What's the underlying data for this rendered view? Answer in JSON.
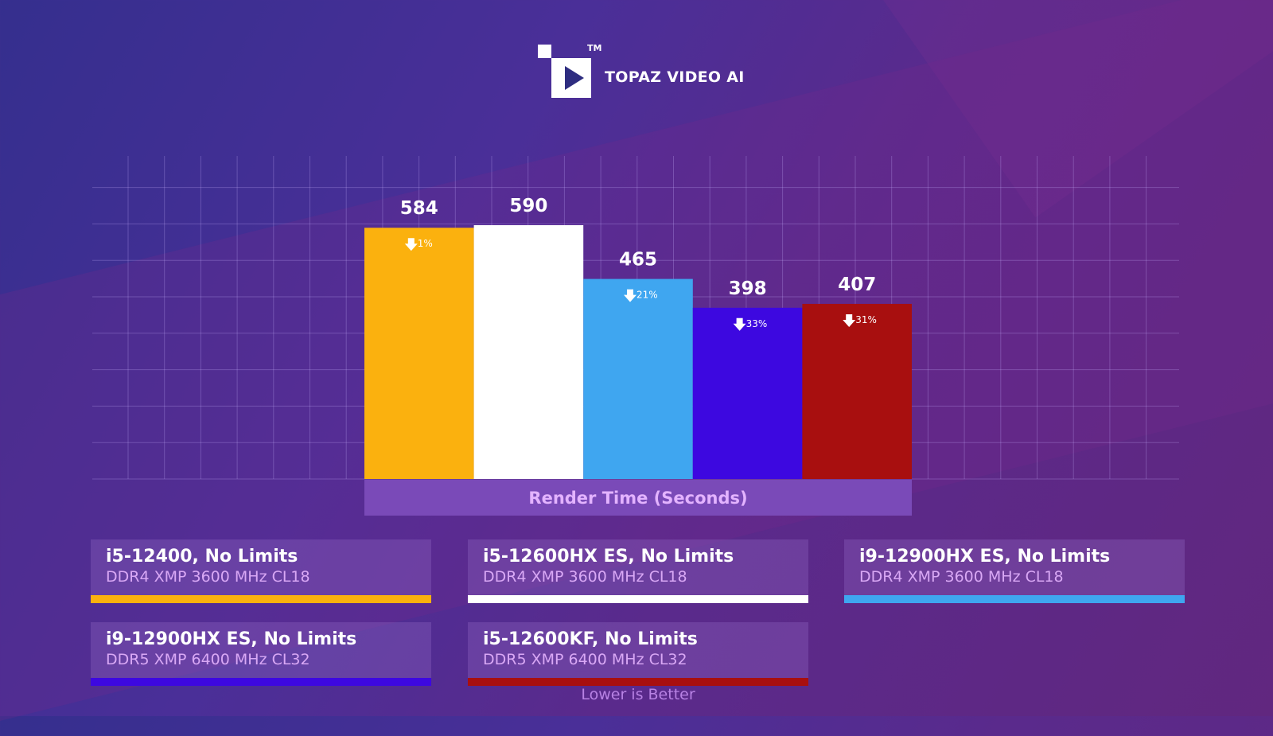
{
  "brand": {
    "name": "TOPAZ VIDEO AI",
    "trademark": "TM"
  },
  "chart_data": {
    "type": "bar",
    "categories": [
      "i5-12400, No Limits",
      "i5-12600HX ES, No Limits",
      "i9-12900HX ES, No Limits",
      "i9-12900HX ES, No Limits",
      "i5-12600KF, No Limits"
    ],
    "values": [
      584,
      590,
      465,
      398,
      407
    ],
    "value_labels": [
      "584",
      "590",
      "465",
      "398",
      "407"
    ],
    "deltas": [
      "1%",
      "",
      "21%",
      "33%",
      "31%"
    ],
    "colors": [
      "#fbb10e",
      "#ffffff",
      "#3fa6f0",
      "#3d08e0",
      "#a80f0f"
    ],
    "xlabel": "Render Time (Seconds)",
    "ylim": [
      0,
      738
    ],
    "grid": true,
    "legend": [
      {
        "name": "i5-12400, No Limits",
        "spec": "DDR4 XMP 3600 MHz CL18",
        "color": "#fbb10e"
      },
      {
        "name": "i5-12600HX ES, No Limits",
        "spec": "DDR4 XMP 3600 MHz CL18",
        "color": "#ffffff"
      },
      {
        "name": "i9-12900HX ES, No Limits",
        "spec": "DDR4 XMP 3600 MHz CL18",
        "color": "#3fa6f0"
      },
      {
        "name": "i9-12900HX ES, No Limits",
        "spec": "DDR5 XMP 6400 MHz CL32",
        "color": "#3d08e0"
      },
      {
        "name": "i5-12600KF, No Limits",
        "spec": "DDR5 XMP 6400 MHz CL32",
        "color": "#a80f0f"
      }
    ],
    "note": "Lower is Better"
  }
}
